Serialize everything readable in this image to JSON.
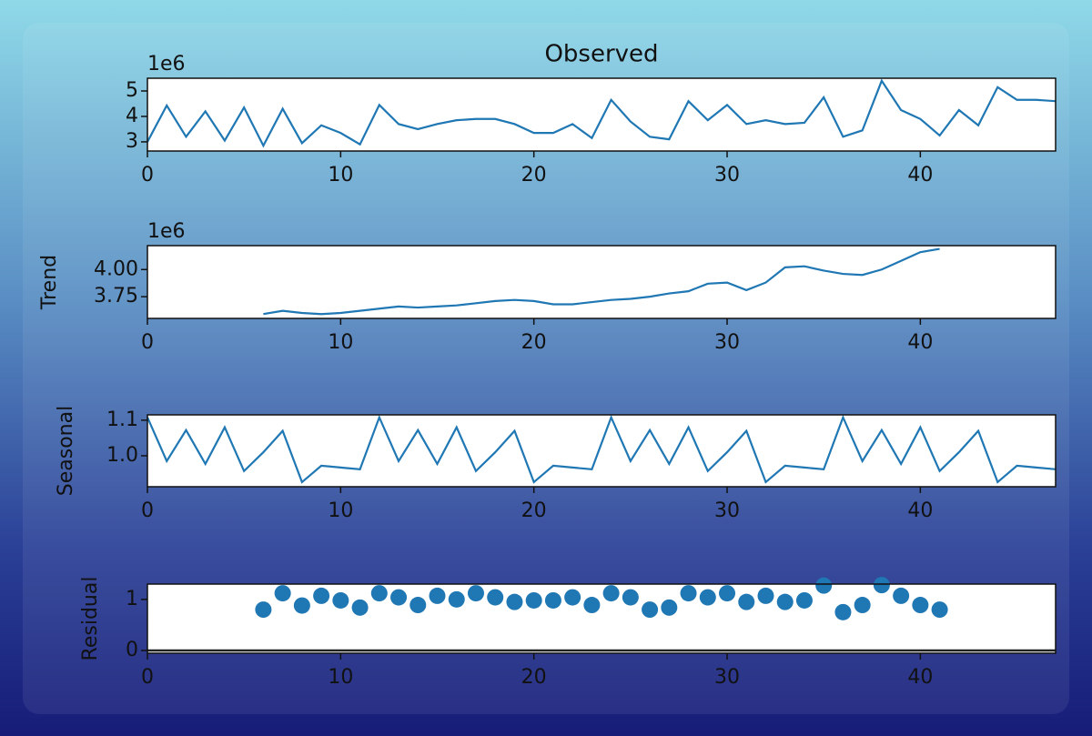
{
  "chart_data": [
    {
      "type": "line",
      "title": "Observed",
      "offset_label": "1e6",
      "color": "#1f77b4",
      "x": [
        0,
        1,
        2,
        3,
        4,
        5,
        6,
        7,
        8,
        9,
        10,
        11,
        12,
        13,
        14,
        15,
        16,
        17,
        18,
        19,
        20,
        21,
        22,
        23,
        24,
        25,
        26,
        27,
        28,
        29,
        30,
        31,
        32,
        33,
        34,
        35,
        36,
        37,
        38,
        39,
        40,
        41,
        42,
        43,
        44,
        45,
        46,
        47
      ],
      "values": [
        3.0,
        4.43,
        3.2,
        4.2,
        3.05,
        4.35,
        2.85,
        4.3,
        2.95,
        3.65,
        3.35,
        2.9,
        4.45,
        3.7,
        3.5,
        3.7,
        3.85,
        3.9,
        3.9,
        3.7,
        3.35,
        3.35,
        3.7,
        3.15,
        4.65,
        3.8,
        3.2,
        3.1,
        4.6,
        3.85,
        4.45,
        3.7,
        3.85,
        3.7,
        3.75,
        4.75,
        3.2,
        3.45,
        5.4,
        4.25,
        3.9,
        3.25,
        4.25,
        3.65,
        5.15,
        4.65,
        4.65,
        4.6
      ],
      "xlim": [
        0,
        47
      ],
      "xticks": [
        0,
        10,
        20,
        30,
        40
      ],
      "ylim": [
        2.64,
        5.5
      ],
      "yticks": [
        3,
        4,
        5
      ]
    },
    {
      "type": "line",
      "y_label": "Trend",
      "offset_label": "1e6",
      "color": "#1f77b4",
      "x": [
        0,
        1,
        2,
        3,
        4,
        5,
        6,
        7,
        8,
        9,
        10,
        11,
        12,
        13,
        14,
        15,
        16,
        17,
        18,
        19,
        20,
        21,
        22,
        23,
        24,
        25,
        26,
        27,
        28,
        29,
        30,
        31,
        32,
        33,
        34,
        35,
        36,
        37,
        38,
        39,
        40,
        41,
        42,
        43,
        44,
        45,
        46,
        47
      ],
      "values": [
        null,
        null,
        null,
        null,
        null,
        null,
        3.59,
        3.62,
        3.6,
        3.59,
        3.6,
        3.62,
        3.64,
        3.66,
        3.65,
        3.66,
        3.67,
        3.69,
        3.71,
        3.72,
        3.71,
        3.68,
        3.68,
        3.7,
        3.72,
        3.73,
        3.75,
        3.78,
        3.8,
        3.87,
        3.88,
        3.81,
        3.88,
        4.02,
        4.03,
        3.99,
        3.96,
        3.95,
        4.0,
        4.08,
        4.16,
        4.19,
        null,
        null,
        null,
        null,
        null,
        null
      ],
      "xlim": [
        0,
        47
      ],
      "xticks": [
        0,
        10,
        20,
        30,
        40
      ],
      "ylim": [
        3.55,
        4.22
      ],
      "yticks": [
        {
          "value": 3.75,
          "label": "3.75"
        },
        {
          "value": 4,
          "label": "4.00"
        }
      ]
    },
    {
      "type": "line",
      "y_label": "Seasonal",
      "color": "#1f77b4",
      "x": [
        0,
        1,
        2,
        3,
        4,
        5,
        6,
        7,
        8,
        9,
        10,
        11,
        12,
        13,
        14,
        15,
        16,
        17,
        18,
        19,
        20,
        21,
        22,
        23,
        24,
        25,
        26,
        27,
        28,
        29,
        30,
        31,
        32,
        33,
        34,
        35,
        36,
        37,
        38,
        39,
        40,
        41,
        42,
        43,
        44,
        45,
        46,
        47
      ],
      "values": [
        1.108,
        0.985,
        1.072,
        0.977,
        1.08,
        0.957,
        1.01,
        1.07,
        0.926,
        0.972,
        0.967,
        0.962,
        1.108,
        0.985,
        1.072,
        0.977,
        1.08,
        0.957,
        1.01,
        1.07,
        0.926,
        0.972,
        0.967,
        0.962,
        1.108,
        0.985,
        1.072,
        0.977,
        1.08,
        0.957,
        1.01,
        1.07,
        0.926,
        0.972,
        0.967,
        0.962,
        1.108,
        0.985,
        1.072,
        0.977,
        1.08,
        0.957,
        1.01,
        1.07,
        0.926,
        0.972,
        0.967,
        0.962
      ],
      "xlim": [
        0,
        47
      ],
      "xticks": [
        0,
        10,
        20,
        30,
        40
      ],
      "ylim": [
        0.913,
        1.115
      ],
      "yticks": [
        {
          "value": 1,
          "label": "1.0"
        },
        1.1
      ]
    },
    {
      "type": "scatter",
      "y_label": "Residual",
      "color": "#1f77b4",
      "baseline": 0,
      "x": [
        0,
        1,
        2,
        3,
        4,
        5,
        6,
        7,
        8,
        9,
        10,
        11,
        12,
        13,
        14,
        15,
        16,
        17,
        18,
        19,
        20,
        21,
        22,
        23,
        24,
        25,
        26,
        27,
        28,
        29,
        30,
        31,
        32,
        33,
        34,
        35,
        36,
        37,
        38,
        39,
        40,
        41,
        42,
        43,
        44,
        45,
        46,
        47
      ],
      "values": [
        null,
        null,
        null,
        null,
        null,
        null,
        0.8,
        1.12,
        0.88,
        1.07,
        0.98,
        0.84,
        1.12,
        1.04,
        0.89,
        1.07,
        1.0,
        1.12,
        1.04,
        0.95,
        0.98,
        0.98,
        1.04,
        0.89,
        1.12,
        1.04,
        0.8,
        0.84,
        1.12,
        1.04,
        1.12,
        0.95,
        1.07,
        0.95,
        0.98,
        1.27,
        0.75,
        0.89,
        1.28,
        1.07,
        0.89,
        0.8,
        null,
        null,
        null,
        null,
        null,
        null
      ],
      "xlim": [
        0,
        47
      ],
      "xticks": [
        0,
        10,
        20,
        30,
        40
      ],
      "ylim": [
        -0.054,
        1.3
      ],
      "yticks": [
        0,
        1
      ]
    }
  ]
}
